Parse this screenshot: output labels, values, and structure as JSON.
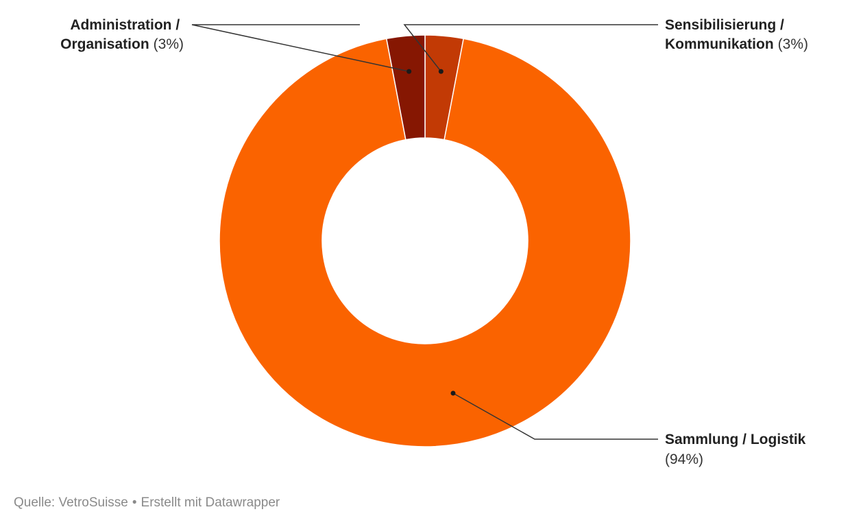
{
  "chart_data": {
    "type": "pie",
    "variant": "donut",
    "title": "",
    "slices": [
      {
        "name_lines": [
          "Sensibilisierung /",
          "Kommunikation"
        ],
        "value": 3,
        "value_label": "(3%)",
        "color": "#c23a05"
      },
      {
        "name_lines": [
          "Sammlung / Logistik"
        ],
        "value": 94,
        "value_label": "(94%)",
        "color": "#fa6300"
      },
      {
        "name_lines": [
          "Administration /",
          "Organisation"
        ],
        "value": 3,
        "value_label": "(3%)",
        "color": "#861702"
      }
    ]
  },
  "footer": {
    "source": "Quelle: VetroSuisse",
    "separator": "•",
    "credit": "Erstellt mit Datawrapper"
  }
}
